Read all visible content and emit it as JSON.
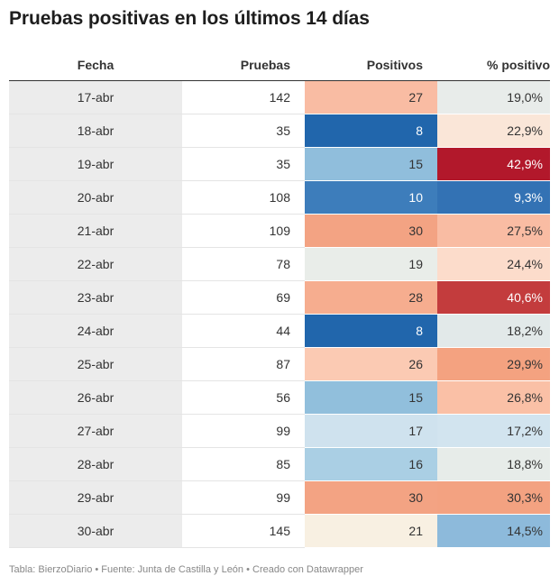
{
  "title": "Pruebas positivas en los últimos 14 días",
  "footer": "Tabla: BierzoDiario • Fuente: Junta de Castilla y León • Creado con Datawrapper",
  "chart_data": {
    "type": "table",
    "title": "Pruebas positivas en los últimos 14 días",
    "columns": [
      "Fecha",
      "Pruebas",
      "Positivos",
      "% positivo"
    ],
    "rows": [
      {
        "fecha": "17-abr",
        "pruebas": "142",
        "positivos": "27",
        "pct": "19,0%",
        "pos_color": "#f9bca3",
        "pct_color": "#e8ecea"
      },
      {
        "fecha": "18-abr",
        "pruebas": "35",
        "positivos": "8",
        "pct": "22,9%",
        "pos_color": "#2166ac",
        "pct_color": "#fae6d8"
      },
      {
        "fecha": "19-abr",
        "pruebas": "35",
        "positivos": "15",
        "pct": "42,9%",
        "pos_color": "#90bedc",
        "pct_color": "#b2182b"
      },
      {
        "fecha": "20-abr",
        "pruebas": "108",
        "positivos": "10",
        "pct": "9,3%",
        "pos_color": "#3d7dbb",
        "pct_color": "#3372b4"
      },
      {
        "fecha": "21-abr",
        "pruebas": "109",
        "positivos": "30",
        "pct": "27,5%",
        "pos_color": "#f3a383",
        "pct_color": "#f9bca3"
      },
      {
        "fecha": "22-abr",
        "pruebas": "78",
        "positivos": "19",
        "pct": "24,4%",
        "pos_color": "#e9ede9",
        "pct_color": "#fcdccb"
      },
      {
        "fecha": "23-abr",
        "pruebas": "69",
        "positivos": "28",
        "pct": "40,6%",
        "pos_color": "#f6ad8f",
        "pct_color": "#c33c3d"
      },
      {
        "fecha": "24-abr",
        "pruebas": "44",
        "positivos": "8",
        "pct": "18,2%",
        "pos_color": "#2166ac",
        "pct_color": "#e2e9e9"
      },
      {
        "fecha": "25-abr",
        "pruebas": "87",
        "positivos": "26",
        "pct": "29,9%",
        "pos_color": "#fbcab3",
        "pct_color": "#f4a280"
      },
      {
        "fecha": "26-abr",
        "pruebas": "56",
        "positivos": "15",
        "pct": "26,8%",
        "pos_color": "#91bfdc",
        "pct_color": "#fac0a6"
      },
      {
        "fecha": "27-abr",
        "pruebas": "99",
        "positivos": "17",
        "pct": "17,2%",
        "pos_color": "#cfe2ee",
        "pct_color": "#d2e4ef"
      },
      {
        "fecha": "28-abr",
        "pruebas": "85",
        "positivos": "16",
        "pct": "18,8%",
        "pos_color": "#aacfe4",
        "pct_color": "#e7ece9"
      },
      {
        "fecha": "29-abr",
        "pruebas": "99",
        "positivos": "30",
        "pct": "30,3%",
        "pos_color": "#f3a383",
        "pct_color": "#f3a281"
      },
      {
        "fecha": "30-abr",
        "pruebas": "145",
        "positivos": "21",
        "pct": "14,5%",
        "pos_color": "#f8f0e2",
        "pct_color": "#8dbadb"
      }
    ]
  }
}
